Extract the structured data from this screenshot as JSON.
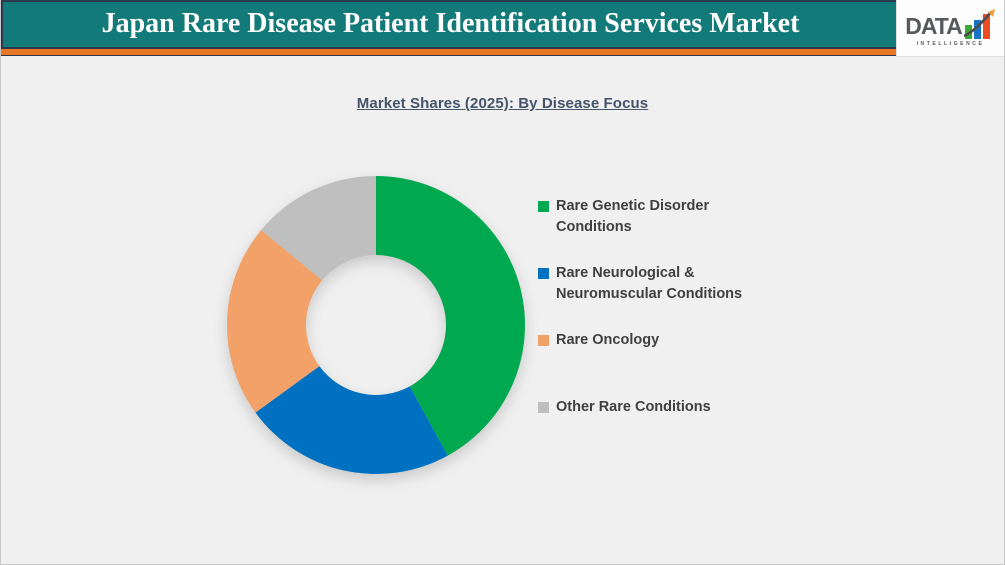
{
  "page": {
    "background": "#f0f0f0"
  },
  "header": {
    "title": "Japan Rare Disease Patient Identification Services Market",
    "colors": {
      "band": "#127a78",
      "stripe": "#e87625",
      "border": "#2b3850",
      "title_text": "#ffffff"
    },
    "logo": {
      "brand": "DATA",
      "subtext": "INTELLIGENCE",
      "bar_colors": [
        "#3aaa35",
        "#1673c6",
        "#ee4d23"
      ],
      "arrow_color": "#4d4d4d",
      "arrowhead_color": "#f0a13c",
      "text_color": "#58595b"
    }
  },
  "chart_data": {
    "type": "pie",
    "subtype": "donut",
    "title": "Market Shares (2025): By Disease Focus",
    "title_color": "#44546a",
    "categories": [
      "Rare Genetic Disorder Conditions",
      "Rare Neurological & Neuromuscular Conditions",
      "Rare Oncology",
      "Other Rare Conditions"
    ],
    "values": [
      42,
      23,
      21,
      14
    ],
    "unit": "percent share (estimated from arc angles; no data labels shown)",
    "colors": [
      "#00a84f",
      "#0070c0",
      "#f2a169",
      "#bfbfbf"
    ],
    "start_angle_deg": 0,
    "direction": "clockwise",
    "inner_radius_ratio": 0.47,
    "legend_position": "right",
    "legend_text_color": "#3f3f3f"
  }
}
